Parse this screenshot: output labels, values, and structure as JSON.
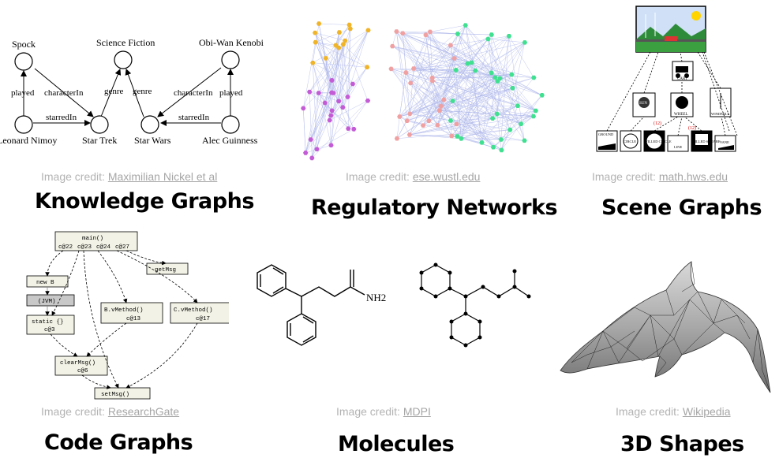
{
  "panels": [
    {
      "id": "knowledge",
      "title": "Knowledge Graphs",
      "credit_prefix": "Image credit: ",
      "credit_link": "Maximilian Nickel et al"
    },
    {
      "id": "regulatory",
      "title": "Regulatory Networks",
      "credit_prefix": "Image credit: ",
      "credit_link": "ese.wustl.edu"
    },
    {
      "id": "scene",
      "title": "Scene Graphs",
      "credit_prefix": "Image credit: ",
      "credit_link": "math.hws.edu"
    },
    {
      "id": "code",
      "title": "Code Graphs",
      "credit_prefix": "Image credit: ",
      "credit_link": "ResearchGate"
    },
    {
      "id": "molecules",
      "title": "Molecules",
      "credit_prefix": "Image credit: ",
      "credit_link": "MDPI"
    },
    {
      "id": "shapes",
      "title": "3D Shapes",
      "credit_prefix": "Image credit: ",
      "credit_link": "Wikipedia"
    }
  ],
  "kg": {
    "nodes": [
      "Spock",
      "Science Fiction",
      "Obi-Wan Kenobi",
      "Leonard Nimoy",
      "Star Trek",
      "Star Wars",
      "Alec Guinness"
    ],
    "edges": [
      "played",
      "characterIn",
      "genre",
      "genre",
      "characterIn",
      "played",
      "starredIn",
      "starredIn"
    ]
  },
  "scene": {
    "nodes": [
      "CART",
      "SUN",
      "WHEEL",
      "WINDMILL",
      "GROUND",
      "CIRCLE",
      "FILLED CIRCLE",
      "LINE",
      "FILLED SQUARE",
      "VANE"
    ],
    "counts": [
      "(12)",
      "(12)"
    ]
  },
  "code": {
    "main": "main()",
    "calls": [
      "c@22",
      "c@23",
      "c@24",
      "c@27"
    ],
    "nodes": [
      "getMsg",
      "new B",
      "(JVM)",
      "B.vMethod()",
      "C.vMethod()",
      "static {}",
      "clearMsg()",
      "setMsg()"
    ],
    "subs": [
      "c@13",
      "c@17",
      "c@3",
      "c@6"
    ]
  },
  "molecule": {
    "label": "NH2"
  },
  "colors": {
    "orange": "#f0b429",
    "purple": "#c45bd6",
    "red": "#f0a0a0",
    "green": "#3fe08f",
    "edge": "#6b7bd8",
    "code_box": "#f2f2e6"
  }
}
